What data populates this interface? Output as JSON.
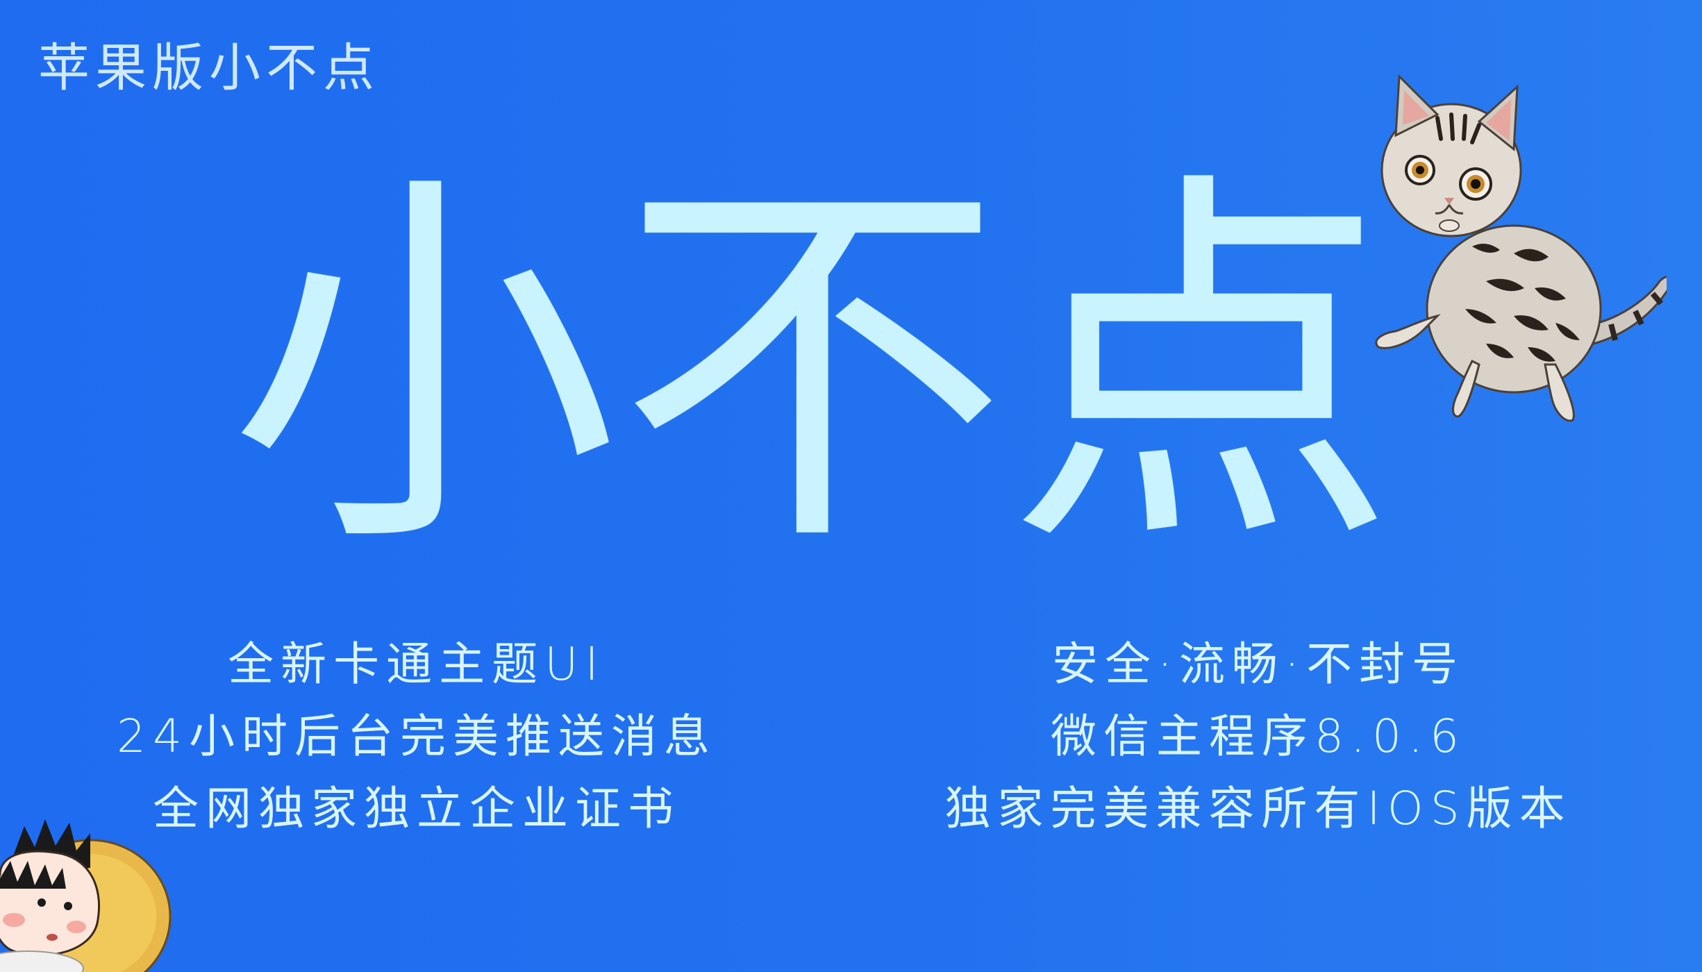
{
  "brand": {
    "label": "苹果版小不点"
  },
  "hero": {
    "chars": [
      "小",
      "不",
      "点"
    ]
  },
  "features": {
    "left": [
      "全新卡通主题UI",
      "24小时后台完美推送消息",
      "全网独家独立企业证书"
    ],
    "right": [
      "安全·流畅·不封号",
      "微信主程序8.0.6",
      "独家完美兼容所有IOS版本"
    ]
  },
  "colors": {
    "background": "#2070f0",
    "text": "#d9f5ff",
    "hero": "#c9f3ff"
  },
  "decor": {
    "cat": "cat-illustration",
    "girl": "cartoon-girl-illustration"
  }
}
